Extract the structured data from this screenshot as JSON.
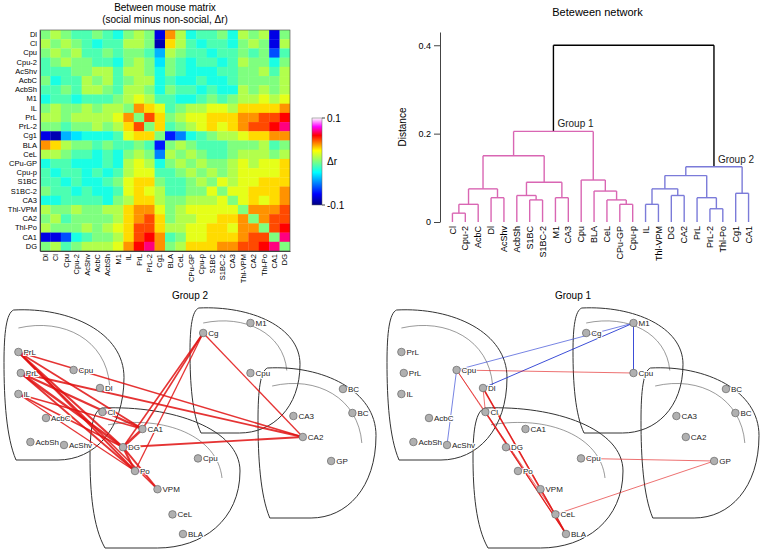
{
  "chart_data": [
    {
      "type": "heatmap",
      "title": "Between mouse matrix",
      "subtitle": "(social minus non-social, Δr)",
      "categories": [
        "Dl",
        "Cl",
        "Cpu",
        "Cpu-2",
        "AcShv",
        "AcbC",
        "AcbSh",
        "M1",
        "IL",
        "PrL",
        "PrL-2",
        "Cg1",
        "BLA",
        "CeL",
        "CPu-GP",
        "Cpu-p",
        "S1BC",
        "S1BC-2",
        "CA3",
        "Thl-VPM",
        "CA2",
        "Thl-Po",
        "CA1",
        "DG"
      ],
      "values": [
        [
          0,
          0.01,
          0.0,
          -0.01,
          -0.01,
          0.0,
          -0.01,
          -0.02,
          0.0,
          0.01,
          0.0,
          -0.08,
          0.04,
          0.01,
          -0.02,
          -0.01,
          -0.01,
          0.0,
          -0.02,
          0.01,
          0.0,
          0.01,
          -0.08,
          0.0
        ],
        [
          0.01,
          0,
          0.01,
          0.0,
          -0.01,
          -0.02,
          -0.01,
          -0.01,
          0.01,
          0.01,
          0.0,
          -0.09,
          0.03,
          0.01,
          -0.01,
          -0.02,
          -0.01,
          -0.01,
          -0.02,
          0.0,
          0.01,
          0.0,
          -0.08,
          0.01
        ],
        [
          0.0,
          0.01,
          0,
          0.01,
          -0.01,
          -0.01,
          0.0,
          -0.01,
          0.0,
          0.0,
          -0.01,
          -0.04,
          0.01,
          0.0,
          -0.01,
          -0.01,
          -0.02,
          -0.01,
          -0.01,
          0.0,
          -0.01,
          0.0,
          -0.06,
          -0.01
        ],
        [
          -0.01,
          0.0,
          0.01,
          0,
          0.0,
          -0.01,
          -0.01,
          -0.02,
          0.0,
          0.01,
          0.0,
          -0.03,
          0.0,
          -0.01,
          -0.02,
          -0.01,
          -0.01,
          -0.02,
          -0.01,
          0.01,
          0.0,
          0.0,
          -0.02,
          0.0
        ],
        [
          -0.01,
          -0.01,
          -0.01,
          0.0,
          0,
          0.01,
          0.01,
          -0.01,
          0.01,
          0.01,
          0.0,
          -0.02,
          0.0,
          -0.01,
          -0.02,
          -0.02,
          -0.02,
          -0.01,
          -0.01,
          0.0,
          0.0,
          0.01,
          -0.01,
          0.01
        ],
        [
          0.0,
          -0.02,
          -0.01,
          -0.01,
          0.01,
          0,
          0.01,
          -0.01,
          0.0,
          0.01,
          0.01,
          -0.02,
          -0.01,
          -0.02,
          -0.02,
          -0.01,
          -0.02,
          -0.02,
          -0.01,
          0.0,
          0.0,
          0.0,
          0.0,
          0.01
        ],
        [
          -0.01,
          -0.01,
          0.0,
          -0.01,
          0.01,
          0.01,
          0,
          -0.01,
          0.01,
          0.01,
          0.0,
          -0.02,
          0.0,
          -0.01,
          -0.01,
          -0.02,
          -0.01,
          -0.02,
          -0.02,
          0.01,
          0.0,
          0.01,
          0.0,
          0.01
        ],
        [
          -0.02,
          -0.01,
          -0.01,
          -0.02,
          -0.01,
          -0.01,
          -0.01,
          0,
          0.01,
          0.02,
          0.01,
          -0.01,
          -0.01,
          -0.02,
          -0.02,
          -0.01,
          0.0,
          -0.01,
          0.0,
          0.01,
          0.01,
          0.02,
          0.01,
          0.02
        ],
        [
          0.0,
          0.01,
          0.0,
          0.0,
          0.01,
          0.0,
          0.01,
          0.01,
          0,
          0.04,
          0.03,
          0.02,
          -0.01,
          0.0,
          0.01,
          0.01,
          0.02,
          0.02,
          0.01,
          0.03,
          0.03,
          0.03,
          0.03,
          0.04
        ],
        [
          0.01,
          0.01,
          0.0,
          0.01,
          0.01,
          0.01,
          0.01,
          0.02,
          0.04,
          0,
          0.05,
          0.03,
          0.0,
          0.01,
          0.02,
          0.02,
          0.03,
          0.03,
          0.03,
          0.04,
          0.04,
          0.05,
          0.05,
          0.06
        ],
        [
          0.0,
          0.0,
          -0.01,
          0.0,
          0.0,
          0.01,
          0.0,
          0.01,
          0.03,
          0.05,
          0,
          0.03,
          -0.01,
          0.0,
          0.01,
          0.02,
          0.03,
          0.02,
          0.03,
          0.04,
          0.05,
          0.05,
          0.06,
          0.07
        ],
        [
          -0.08,
          -0.09,
          -0.04,
          -0.03,
          -0.02,
          -0.02,
          -0.02,
          -0.01,
          0.02,
          0.03,
          0.03,
          0,
          -0.07,
          -0.05,
          -0.02,
          -0.01,
          0.0,
          0.01,
          0.01,
          0.02,
          0.03,
          0.03,
          0.04,
          0.04
        ],
        [
          0.04,
          0.03,
          0.01,
          0.0,
          0.0,
          -0.01,
          0.0,
          -0.01,
          -0.01,
          0.0,
          -0.01,
          -0.07,
          0,
          0.01,
          0.0,
          -0.01,
          -0.01,
          -0.01,
          0.0,
          0.0,
          0.0,
          0.01,
          -0.01,
          0.0
        ],
        [
          0.01,
          0.01,
          0.0,
          -0.01,
          -0.01,
          -0.02,
          -0.01,
          -0.02,
          0.0,
          0.01,
          0.0,
          -0.05,
          0.01,
          0,
          0.01,
          0.0,
          -0.01,
          -0.01,
          0.0,
          0.01,
          0.01,
          0.01,
          0.0,
          0.01
        ],
        [
          -0.02,
          -0.01,
          -0.01,
          -0.02,
          -0.02,
          -0.02,
          -0.01,
          -0.02,
          0.01,
          0.02,
          0.01,
          -0.02,
          0.0,
          0.01,
          0,
          0.01,
          0.0,
          0.0,
          0.01,
          0.02,
          0.01,
          0.02,
          0.02,
          0.03
        ],
        [
          -0.01,
          -0.02,
          -0.01,
          -0.01,
          -0.02,
          -0.01,
          -0.02,
          -0.01,
          0.01,
          0.02,
          0.02,
          -0.01,
          -0.01,
          0.0,
          0.01,
          0,
          0.01,
          0.0,
          0.01,
          0.02,
          0.02,
          0.02,
          0.02,
          0.03
        ],
        [
          -0.01,
          -0.01,
          -0.02,
          -0.01,
          -0.02,
          -0.02,
          -0.01,
          0.0,
          0.02,
          0.03,
          0.03,
          0.0,
          -0.01,
          -0.01,
          0.0,
          0.01,
          0,
          0.02,
          0.01,
          0.02,
          0.02,
          0.03,
          0.03,
          0.03
        ],
        [
          0.0,
          -0.01,
          -0.01,
          -0.02,
          -0.01,
          -0.02,
          -0.02,
          -0.01,
          0.02,
          0.03,
          0.02,
          0.01,
          -0.01,
          -0.01,
          0.0,
          0.0,
          0.02,
          0,
          0.02,
          0.02,
          0.03,
          0.03,
          0.03,
          0.04
        ],
        [
          -0.02,
          -0.02,
          -0.01,
          -0.01,
          -0.01,
          -0.01,
          -0.02,
          0.0,
          0.01,
          0.03,
          0.03,
          0.01,
          0.0,
          0.0,
          0.01,
          0.01,
          0.01,
          0.02,
          0,
          0.02,
          0.03,
          0.02,
          0.03,
          0.04
        ],
        [
          0.01,
          0.0,
          0.0,
          0.01,
          0.0,
          0.0,
          0.01,
          0.01,
          0.03,
          0.04,
          0.04,
          0.02,
          0.0,
          0.01,
          0.02,
          0.02,
          0.02,
          0.02,
          0.02,
          0,
          0.04,
          0.04,
          0.04,
          0.05
        ],
        [
          0.0,
          0.01,
          -0.01,
          0.0,
          0.0,
          0.0,
          0.0,
          0.01,
          0.03,
          0.04,
          0.05,
          0.03,
          0.0,
          0.01,
          0.01,
          0.02,
          0.02,
          0.03,
          0.03,
          0.04,
          0,
          0.04,
          0.05,
          0.05
        ],
        [
          0.01,
          0.0,
          0.0,
          0.0,
          0.01,
          0.0,
          0.01,
          0.02,
          0.03,
          0.05,
          0.05,
          0.03,
          0.01,
          0.01,
          0.02,
          0.02,
          0.03,
          0.03,
          0.02,
          0.04,
          0.04,
          0,
          0.05,
          0.06
        ],
        [
          -0.08,
          -0.08,
          -0.06,
          -0.02,
          -0.01,
          0.0,
          0.0,
          0.01,
          0.03,
          0.05,
          0.06,
          0.04,
          -0.01,
          0.0,
          0.02,
          0.02,
          0.03,
          0.03,
          0.03,
          0.04,
          0.05,
          0.05,
          0,
          0.07
        ],
        [
          0.0,
          0.01,
          -0.01,
          0.0,
          0.01,
          0.01,
          0.01,
          0.02,
          0.04,
          0.06,
          0.07,
          0.04,
          0.0,
          0.01,
          0.03,
          0.03,
          0.03,
          0.04,
          0.04,
          0.05,
          0.05,
          0.06,
          0.07,
          0
        ]
      ],
      "colorbar": {
        "range": [
          -0.1,
          0.1
        ],
        "ticks": [
          0.1,
          -0.1
        ],
        "label": "Δr"
      }
    },
    {
      "type": "dendrogram",
      "title": "Beteween network",
      "y_label": "Distance",
      "ylim": [
        0,
        0.43
      ],
      "yticks": [
        0,
        0.2,
        0.4
      ],
      "tree": {
        "height": 0.4,
        "children": [
          {
            "label": "Group 1",
            "color": "#d966b3",
            "height": 0.205,
            "children": [
              {
                "height": 0.15,
                "children": [
                  {
                    "height": 0.075,
                    "children": [
                      {
                        "height": 0.04,
                        "children": [
                          {
                            "height": 0.02,
                            "children": [
                              {
                                "name": "Cl",
                                "height": 0
                              },
                              {
                                "name": "Cpu-2",
                                "height": 0
                              }
                            ]
                          },
                          {
                            "name": "AcbC",
                            "height": 0
                          }
                        ]
                      },
                      {
                        "height": 0.055,
                        "children": [
                          {
                            "name": "Dl",
                            "height": 0
                          },
                          {
                            "name": "AcShv",
                            "height": 0
                          }
                        ]
                      }
                    ]
                  },
                  {
                    "height": 0.09,
                    "children": [
                      {
                        "height": 0.06,
                        "children": [
                          {
                            "name": "AcbSh",
                            "height": 0
                          },
                          {
                            "height": 0.05,
                            "children": [
                              {
                                "name": "S1BC",
                                "height": 0
                              },
                              {
                                "name": "S1BC-2",
                                "height": 0
                              }
                            ]
                          }
                        ]
                      },
                      {
                        "height": 0.055,
                        "children": [
                          {
                            "name": "M1",
                            "height": 0
                          },
                          {
                            "name": "CA3",
                            "height": 0
                          }
                        ]
                      }
                    ]
                  }
                ]
              },
              {
                "height": 0.095,
                "children": [
                  {
                    "name": "Cpu",
                    "height": 0
                  },
                  {
                    "height": 0.07,
                    "children": [
                      {
                        "name": "BLA",
                        "height": 0
                      },
                      {
                        "height": 0.05,
                        "children": [
                          {
                            "name": "CeL",
                            "height": 0
                          },
                          {
                            "height": 0.04,
                            "children": [
                              {
                                "name": "CPu-GP",
                                "height": 0
                              },
                              {
                                "name": "Cpu-p",
                                "height": 0
                              }
                            ]
                          }
                        ]
                      }
                    ]
                  }
                ]
              }
            ]
          },
          {
            "label": "Group 2",
            "color": "#7b7bd9",
            "height": 0.125,
            "children": [
              {
                "height": 0.105,
                "children": [
                  {
                    "height": 0.075,
                    "children": [
                      {
                        "height": 0.04,
                        "children": [
                          {
                            "name": "IL",
                            "height": 0
                          },
                          {
                            "name": "Thl-VPM",
                            "height": 0
                          }
                        ]
                      },
                      {
                        "height": 0.06,
                        "children": [
                          {
                            "name": "DG",
                            "height": 0
                          },
                          {
                            "name": "CA2",
                            "height": 0
                          }
                        ]
                      }
                    ]
                  },
                  {
                    "height": 0.055,
                    "children": [
                      {
                        "name": "PrL",
                        "height": 0
                      },
                      {
                        "height": 0.03,
                        "children": [
                          {
                            "name": "PrL-2",
                            "height": 0
                          },
                          {
                            "name": "Thl-Po",
                            "height": 0
                          }
                        ]
                      }
                    ]
                  }
                ]
              },
              {
                "height": 0.065,
                "children": [
                  {
                    "name": "Cg1",
                    "height": 0
                  },
                  {
                    "name": "CA1",
                    "height": 0
                  }
                ]
              }
            ]
          }
        ]
      }
    }
  ],
  "brain_maps": {
    "region_labels": [
      "Dl",
      "Cl",
      "Cpu",
      "Cpu",
      "AcShv",
      "AcbC",
      "AcbSh",
      "M1",
      "IL",
      "PrL",
      "PrL",
      "Cg",
      "BLA",
      "CeL",
      "GP",
      "Cpu",
      "BC",
      "BC",
      "CA3",
      "VPM",
      "CA2",
      "Po",
      "CA1",
      "DG"
    ],
    "panels": [
      {
        "title": "Group 2",
        "edges": [
          [
            "IL",
            "CA1"
          ],
          [
            "IL",
            "DG"
          ],
          [
            "PrL",
            "DG"
          ],
          [
            "PrL",
            "CA1"
          ],
          [
            "PrL",
            "Thl-Po"
          ],
          [
            "PrL-2",
            "DG"
          ],
          [
            "PrL-2",
            "CA1"
          ],
          [
            "PrL-2",
            "CA2"
          ],
          [
            "Cg1",
            "DG"
          ],
          [
            "Cg1",
            "CA1"
          ],
          [
            "Cg1",
            "CA2"
          ],
          [
            "Cg1",
            "Thl-Po"
          ],
          [
            "Thl-VPM",
            "DG"
          ],
          [
            "CA2",
            "DG"
          ],
          [
            "CA1",
            "DG"
          ],
          [
            "Thl-Po",
            "DG"
          ],
          [
            "PrL",
            "Thl-VPM"
          ],
          [
            "PrL-2",
            "Thl-Po"
          ],
          [
            "IL",
            "Thl-Po"
          ],
          [
            "PrL",
            "CA2"
          ]
        ]
      },
      {
        "title": "Group 1",
        "edges": [
          [
            "M1",
            "Dl"
          ],
          [
            "M1",
            "Cpu-2"
          ],
          [
            "M1",
            "Cpu"
          ],
          [
            "Cpu",
            "AcShv"
          ],
          [
            "BLA",
            "Dl"
          ],
          [
            "BLA",
            "Cl"
          ],
          [
            "BLA",
            "Cpu"
          ],
          [
            "CeL",
            "Dl"
          ],
          [
            "CeL",
            "BLA"
          ],
          [
            "CPu-GP",
            "CeL"
          ],
          [
            "Cpu-p",
            "CPu-GP"
          ],
          [
            "Cl",
            "CeL"
          ],
          [
            "Cpu",
            "Cpu-2"
          ],
          [
            "Cl",
            "Cpu"
          ],
          [
            "Dl",
            "Cl"
          ]
        ]
      }
    ]
  }
}
